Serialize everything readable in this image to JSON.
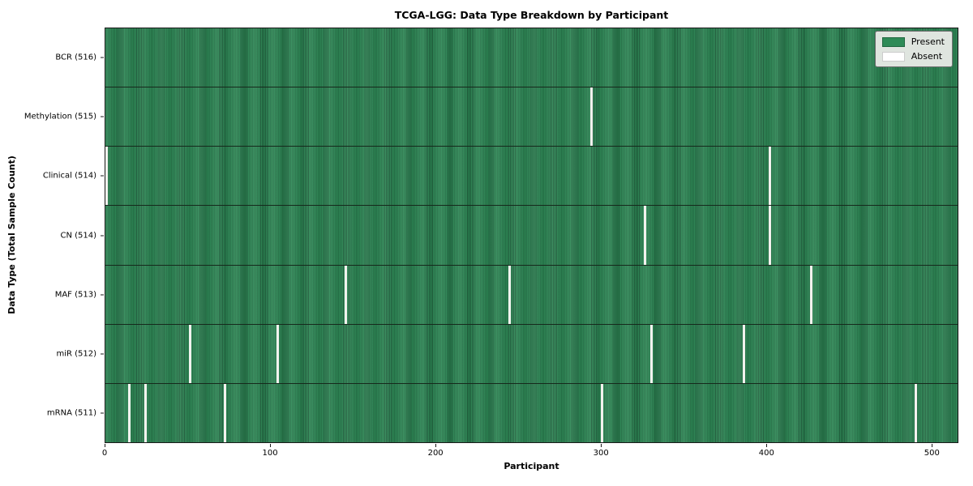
{
  "chart_data": {
    "type": "heatmap",
    "title": "TCGA-LGG: Data Type Breakdown by Participant",
    "xlabel": "Participant",
    "ylabel": "Data Type (Total Sample Count)",
    "x_ticks": [
      0,
      100,
      200,
      300,
      400,
      500
    ],
    "n_participants": 516,
    "grid": false,
    "legend_position": "upper right",
    "cell_encoding": {
      "present": 1,
      "absent": 0
    },
    "colors": {
      "present": "#2e8b57",
      "present_stripe": "#1d5c3a",
      "absent": "#f2f2ee",
      "absent_pure": "#ffffff",
      "row_divider": "#16291c",
      "plot_border": "#1a1a1a",
      "legend_bg": "#dfe5df",
      "legend_border": "#6f6f6f"
    },
    "legend": {
      "entries": [
        {
          "label": "Present"
        },
        {
          "label": "Absent"
        }
      ]
    },
    "rows": [
      {
        "label": "BCR (516)",
        "data_type": "BCR",
        "present_count": 516,
        "absent_participants": []
      },
      {
        "label": "Methylation (515)",
        "data_type": "Methylation",
        "present_count": 515,
        "absent_participants": [
          294
        ]
      },
      {
        "label": "Clinical (514)",
        "data_type": "Clinical",
        "present_count": 514,
        "absent_participants": [
          0,
          402
        ]
      },
      {
        "label": "CN (514)",
        "data_type": "CN",
        "present_count": 514,
        "absent_participants": [
          326,
          402
        ]
      },
      {
        "label": "MAF (513)",
        "data_type": "MAF",
        "present_count": 513,
        "absent_participants": [
          145,
          244,
          427
        ]
      },
      {
        "label": "miR (512)",
        "data_type": "miR",
        "present_count": 512,
        "absent_participants": [
          51,
          104,
          330,
          386
        ]
      },
      {
        "label": "mRNA (511)",
        "data_type": "mRNA",
        "present_count": 511,
        "absent_participants": [
          14,
          24,
          72,
          300,
          490
        ]
      }
    ]
  }
}
